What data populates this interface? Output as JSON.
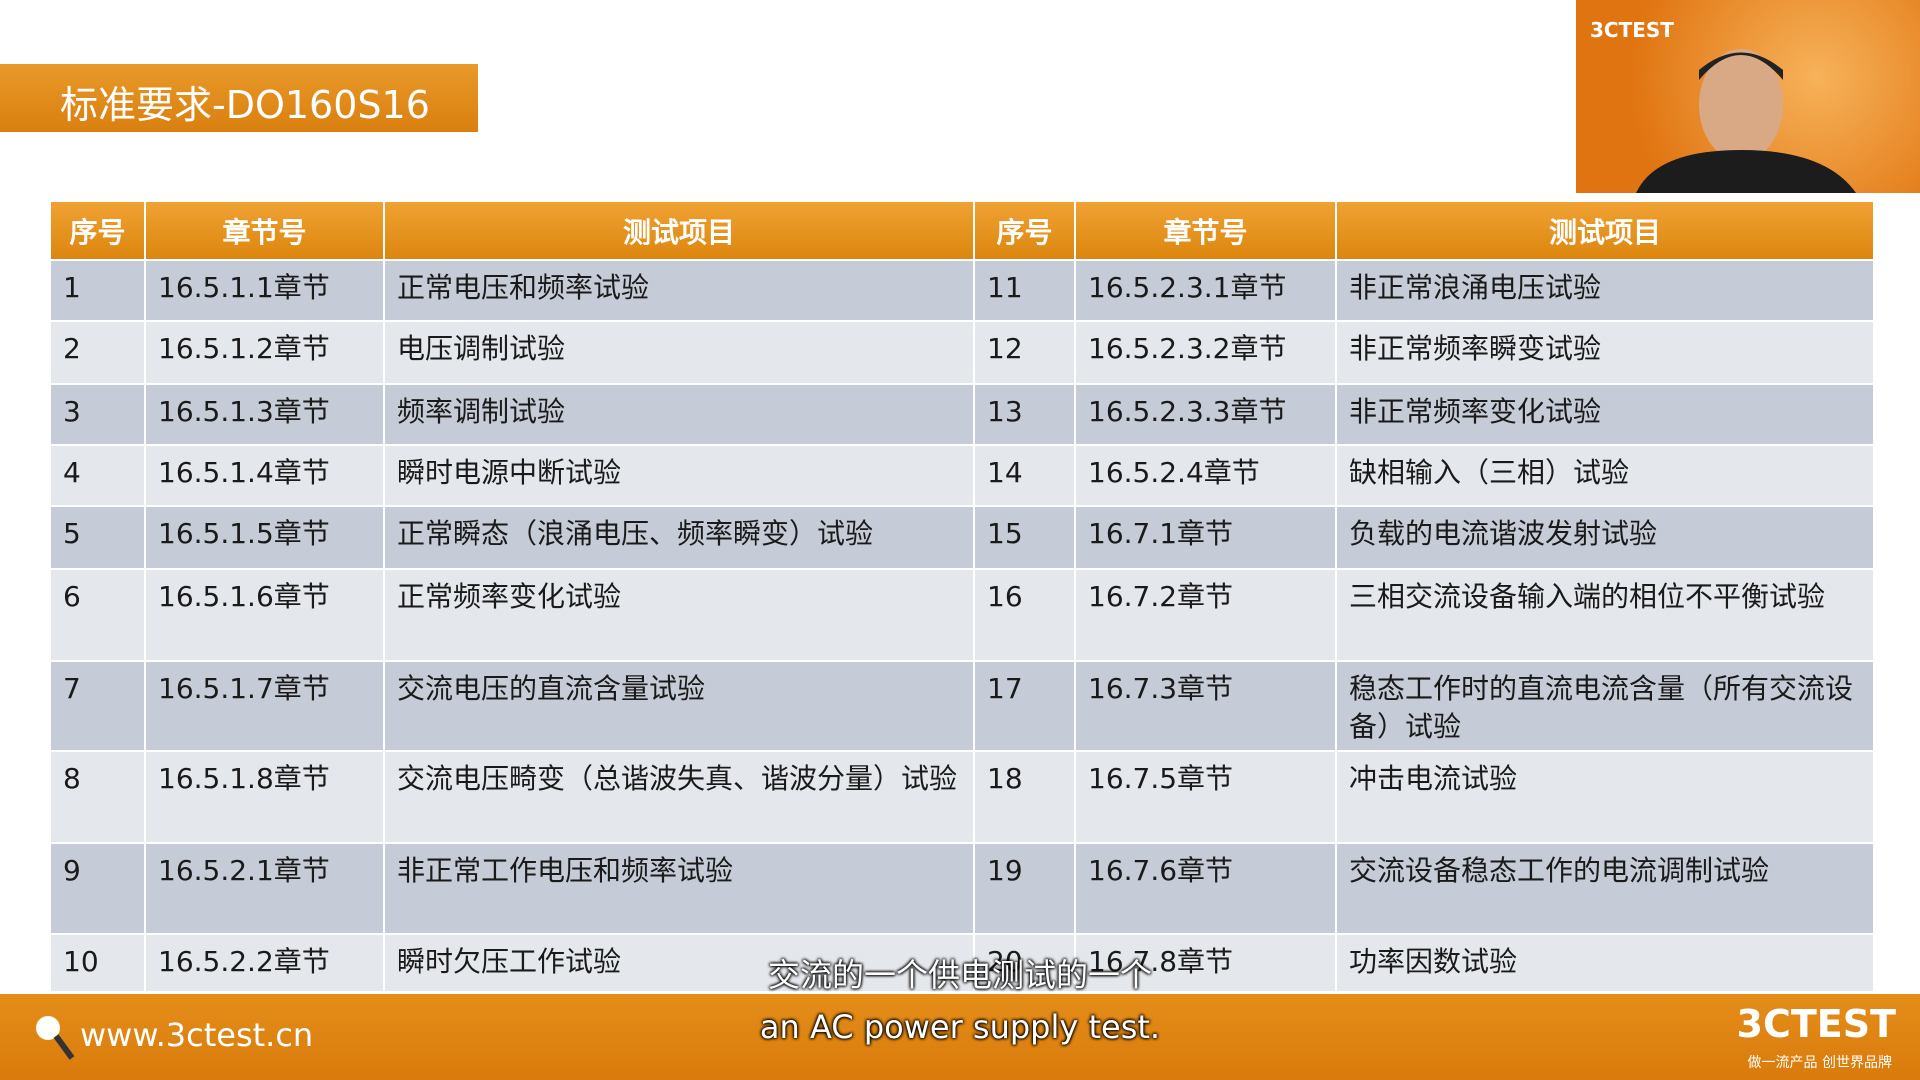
{
  "header": {
    "title": "标准要求-DO160S16"
  },
  "webcam": {
    "logo": "3CTEST"
  },
  "table": {
    "columns": [
      "序号",
      "章节号",
      "测试项目",
      "序号",
      "章节号",
      "测试项目"
    ],
    "rows": [
      [
        "1",
        "16.5.1.1章节",
        "正常电压和频率试验",
        "11",
        "16.5.2.3.1章节",
        "非正常浪涌电压试验"
      ],
      [
        "2",
        "16.5.1.2章节",
        "电压调制试验",
        "12",
        "16.5.2.3.2章节",
        "非正常频率瞬变试验"
      ],
      [
        "3",
        "16.5.1.3章节",
        "频率调制试验",
        "13",
        "16.5.2.3.3章节",
        "非正常频率变化试验"
      ],
      [
        "4",
        "16.5.1.4章节",
        "瞬时电源中断试验",
        "14",
        "16.5.2.4章节",
        "缺相输入（三相）试验"
      ],
      [
        "5",
        "16.5.1.5章节",
        "正常瞬态（浪涌电压、频率瞬变）试验",
        "15",
        "16.7.1章节",
        "负载的电流谐波发射试验"
      ],
      [
        "6",
        "16.5.1.6章节",
        "正常频率变化试验",
        "16",
        "16.7.2章节",
        "三相交流设备输入端的相位不平衡试验"
      ],
      [
        "7",
        "16.5.1.7章节",
        "交流电压的直流含量试验",
        "17",
        "16.7.3章节",
        "稳态工作时的直流电流含量（所有交流设备）试验"
      ],
      [
        "8",
        "16.5.1.8章节",
        "交流电压畸变（总谐波失真、谐波分量）试验",
        "18",
        "16.7.5章节",
        "冲击电流试验"
      ],
      [
        "9",
        "16.5.2.1章节",
        "非正常工作电压和频率试验",
        "19",
        "16.7.6章节",
        "交流设备稳态工作的电流调制试验"
      ],
      [
        "10",
        "16.5.2.2章节",
        "瞬时欠压工作试验",
        "20",
        "16.7.8章节",
        "功率因数试验"
      ]
    ]
  },
  "subtitles": {
    "zh": "交流的一个供电测试的一个",
    "en": "an AC power supply test."
  },
  "footer": {
    "url": "www.3ctest.cn",
    "brand": "3CTEST",
    "slogan": "做一流产品 创世界品牌"
  }
}
